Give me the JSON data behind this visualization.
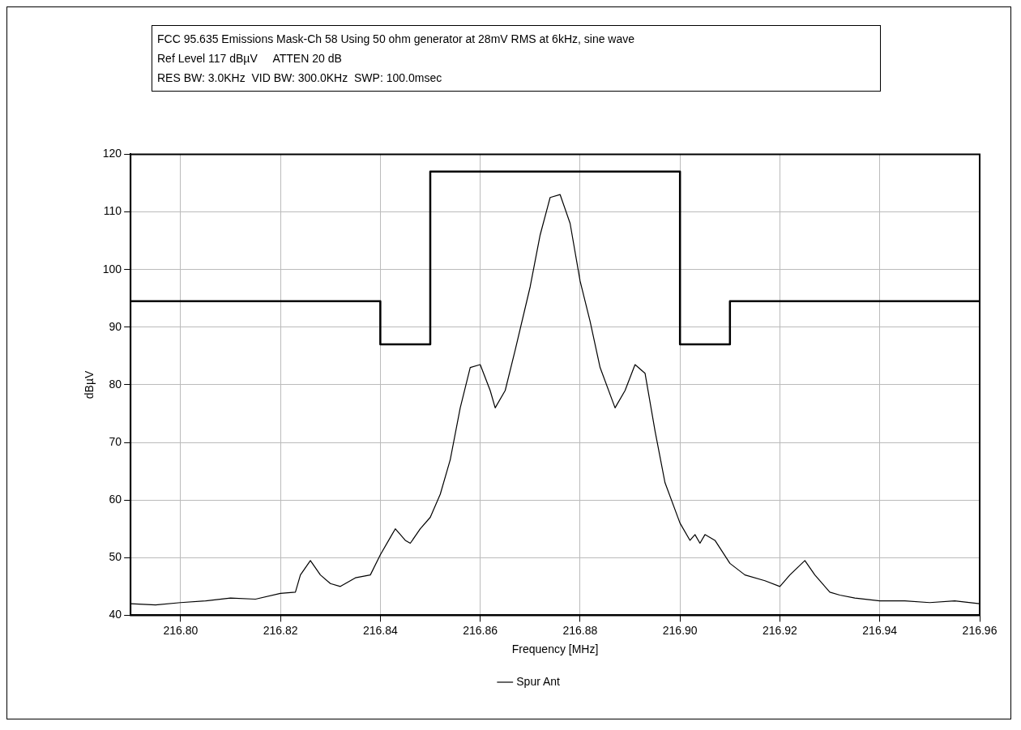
{
  "chart_data": {
    "type": "line",
    "title": "FCC 95.635 Emissions Mask-Ch 58 Using 50 ohm generator at 28mV RMS at 6kHz, sine wave",
    "annotations": [
      "Ref Level 117 dBµV     ATTEN 20 dB",
      "RES BW: 3.0KHz  VID BW: 300.0KHz  SWP: 100.0msec"
    ],
    "xlabel": "Frequency [MHz]",
    "ylabel": "dBµV",
    "xlim": [
      216.79,
      216.96
    ],
    "xticks": [
      {
        "value": 216.8,
        "label": "216.80"
      },
      {
        "value": 216.82,
        "label": "216.82"
      },
      {
        "value": 216.84,
        "label": "216.84"
      },
      {
        "value": 216.86,
        "label": "216.86"
      },
      {
        "value": 216.88,
        "label": "216.88"
      },
      {
        "value": 216.9,
        "label": "216.90"
      },
      {
        "value": 216.92,
        "label": "216.92"
      },
      {
        "value": 216.94,
        "label": "216.94"
      },
      {
        "value": 216.96,
        "label": "216.96"
      }
    ],
    "ylim": [
      40,
      120
    ],
    "yticks": [
      40,
      50,
      60,
      70,
      80,
      90,
      100,
      110,
      120
    ],
    "grid": true,
    "legend": "bottom",
    "marker": "none",
    "line_style": "solid",
    "series": [
      {
        "color": "#000000",
        "x": [
          216.79,
          216.84,
          216.84,
          216.85,
          216.85,
          216.9,
          216.9,
          216.91,
          216.91,
          216.96
        ],
        "values": [
          94.5,
          94.5,
          87,
          87,
          117,
          117,
          87,
          87,
          94.5,
          94.5
        ]
      },
      {
        "name": "Spur Ant",
        "color": "#000000",
        "x": [
          216.79,
          216.795,
          216.8,
          216.805,
          216.81,
          216.815,
          216.82,
          216.823,
          216.824,
          216.826,
          216.828,
          216.83,
          216.832,
          216.835,
          216.838,
          216.84,
          216.842,
          216.843,
          216.845,
          216.846,
          216.848,
          216.85,
          216.852,
          216.854,
          216.856,
          216.858,
          216.86,
          216.862,
          216.863,
          216.865,
          216.867,
          216.87,
          216.872,
          216.874,
          216.876,
          216.878,
          216.88,
          216.882,
          216.884,
          216.887,
          216.889,
          216.891,
          216.893,
          216.895,
          216.897,
          216.9,
          216.902,
          216.903,
          216.904,
          216.905,
          216.907,
          216.91,
          216.913,
          216.917,
          216.92,
          216.922,
          216.925,
          216.927,
          216.93,
          216.932,
          216.935,
          216.94,
          216.945,
          216.95,
          216.955,
          216.96
        ],
        "values": [
          42,
          41.8,
          42.2,
          42.5,
          43,
          42.8,
          43.8,
          44,
          47,
          49.5,
          47,
          45.5,
          45,
          46.5,
          47,
          50.5,
          53.5,
          55,
          53,
          52.5,
          55,
          57,
          61,
          67,
          76,
          83,
          83.5,
          79,
          76,
          79,
          86,
          97,
          106,
          112.5,
          113,
          108,
          98,
          91,
          83,
          76,
          79,
          83.5,
          82,
          72,
          63,
          56,
          53,
          54,
          52.5,
          54,
          53,
          49,
          47,
          46,
          45,
          47,
          49.5,
          47,
          44,
          43.5,
          43,
          42.5,
          42.5,
          42.2,
          42.5,
          42
        ]
      }
    ]
  }
}
